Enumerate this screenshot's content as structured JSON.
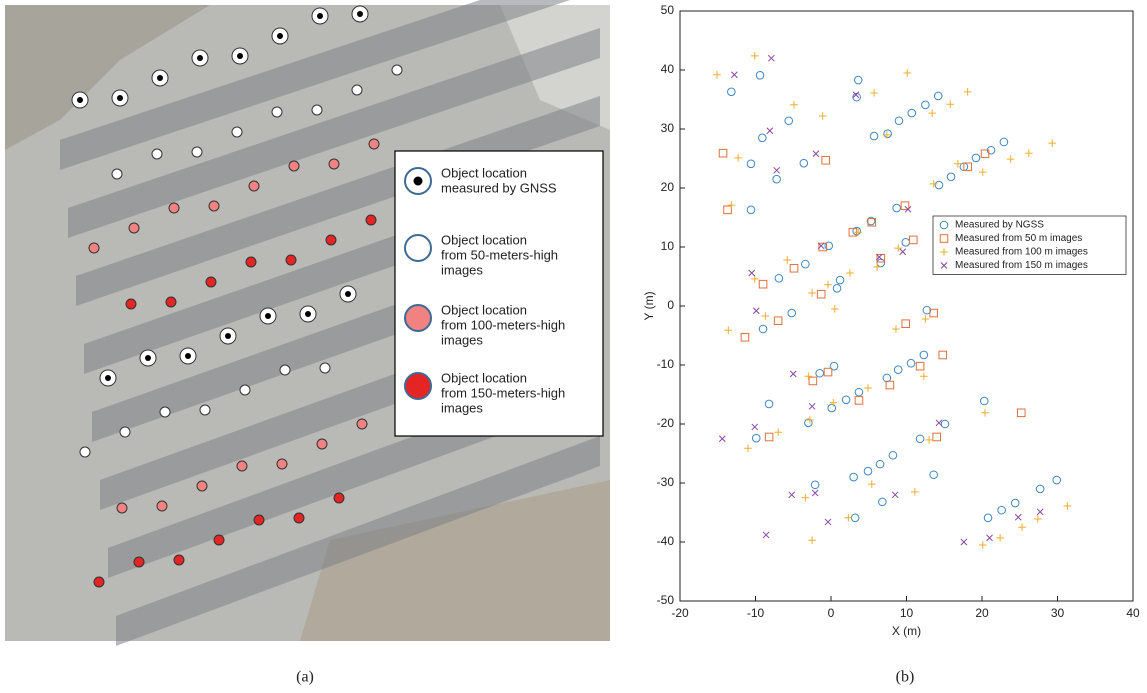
{
  "figure_a": {
    "legend": [
      {
        "lines": [
          "Object location",
          "measured by GNSS"
        ]
      },
      {
        "lines": [
          "Object location",
          "from 50-meters-high",
          "images"
        ]
      },
      {
        "lines": [
          "Object location",
          "from 100-meters-high",
          "images"
        ]
      },
      {
        "lines": [
          "Object location",
          "from 150-meters-high",
          "images"
        ]
      }
    ],
    "caption": "(a)"
  },
  "figure_b_caption": "(b)",
  "chart_data": {
    "type": "scatter",
    "xlabel": "X (m)",
    "ylabel": "Y (m)",
    "xlim": [
      -20,
      40
    ],
    "ylim": [
      -50,
      50
    ],
    "xticks": [
      -20,
      -10,
      0,
      10,
      20,
      30,
      40
    ],
    "yticks": [
      -50,
      -40,
      -30,
      -20,
      -10,
      0,
      10,
      20,
      30,
      40,
      50
    ],
    "legend": "upper right",
    "series": [
      {
        "name": "Measured by NGSS",
        "color": "#3d86c6",
        "marker": "circle",
        "x": [
          -13.2,
          -9.4,
          3.6,
          3.4,
          7.5,
          9.0,
          10.7,
          12.5,
          14.2,
          5.7,
          -5.6,
          -9.1,
          -10.6,
          -3.6,
          -7.2,
          14.3,
          15.9,
          19.2,
          21.2,
          22.9,
          17.6,
          -10.6,
          8.7,
          3.4,
          5.3,
          6.6,
          9.9,
          -0.3,
          -3.4,
          -6.9,
          0.8,
          1.2,
          -5.2,
          -9.0,
          12.7,
          0.4,
          -1.5,
          7.4,
          8.9,
          10.6,
          12.3,
          -8.2,
          -9.9,
          -3.0,
          0.1,
          2.0,
          3.7,
          11.8,
          15.1,
          20.3,
          -2.1,
          3.0,
          4.9,
          6.5,
          8.2,
          13.6,
          3.2,
          6.8,
          20.8,
          22.6,
          24.4,
          27.7,
          29.9
        ],
        "y": [
          36.3,
          39.1,
          38.3,
          35.4,
          29.2,
          31.4,
          32.7,
          34.1,
          35.6,
          28.8,
          31.4,
          28.5,
          24.1,
          24.2,
          21.5,
          20.5,
          21.9,
          25.1,
          26.4,
          27.8,
          23.6,
          16.3,
          16.6,
          12.7,
          14.4,
          7.3,
          10.8,
          10.2,
          7.1,
          4.7,
          3.0,
          4.4,
          -1.2,
          -3.9,
          -0.7,
          -10.2,
          -11.4,
          -12.2,
          -10.8,
          -9.7,
          -8.3,
          -16.6,
          -22.4,
          -19.8,
          -17.3,
          -15.9,
          -14.6,
          -22.5,
          -20.0,
          -16.1,
          -30.3,
          -29.0,
          -28.0,
          -26.8,
          -25.3,
          -28.6,
          -35.9,
          -33.2,
          -35.9,
          -34.6,
          -33.4,
          -31.0,
          -29.5
        ]
      },
      {
        "name": "Measured from 50 m images",
        "color": "#e0703c",
        "marker": "square",
        "x": [
          -14.3,
          -13.7,
          -9.0,
          -4.9,
          -1.3,
          -1.1,
          2.9,
          5.4,
          9.8,
          6.6,
          10.9,
          -7.0,
          -11.4,
          9.9,
          13.6,
          -2.4,
          -0.4,
          7.8,
          11.8,
          14.8,
          -8.2,
          3.7,
          14.0,
          25.2,
          -0.7,
          18.1,
          20.4
        ],
        "y": [
          25.9,
          16.3,
          3.7,
          6.4,
          2.0,
          10.0,
          12.5,
          14.2,
          17.0,
          8.1,
          11.2,
          -2.5,
          -5.3,
          -3.0,
          -1.2,
          -12.7,
          -11.2,
          -13.4,
          -10.2,
          -8.3,
          -22.2,
          -16.0,
          -22.2,
          -18.1,
          24.7,
          23.6,
          25.8
        ]
      },
      {
        "name": "Measured from 100 m images",
        "color": "#eeae2e",
        "marker": "plus",
        "x": [
          -15.1,
          -10.1,
          -12.3,
          -13.2,
          -4.9,
          -1.1,
          5.7,
          10.1,
          7.4,
          13.4,
          15.8,
          18.1,
          13.6,
          16.8,
          20.1,
          23.8,
          26.2,
          29.3,
          -10.1,
          -5.8,
          -2.5,
          -0.4,
          2.5,
          3.6,
          6.1,
          8.9,
          -13.6,
          -8.7,
          0.5,
          8.6,
          12.5,
          -3.0,
          0.3,
          4.9,
          12.3,
          -11.0,
          -7.0,
          -2.8,
          13.0,
          20.4,
          -3.4,
          -2.5,
          2.3,
          5.4,
          11.1,
          20.1,
          22.4,
          25.3,
          27.4,
          31.3
        ],
        "y": [
          39.2,
          42.4,
          25.1,
          17.1,
          34.1,
          32.2,
          36.1,
          39.5,
          29.0,
          32.7,
          34.2,
          36.3,
          20.7,
          24.1,
          22.7,
          24.9,
          25.9,
          27.6,
          4.6,
          7.8,
          2.2,
          3.6,
          5.6,
          12.5,
          6.6,
          9.8,
          -4.1,
          -1.7,
          -0.5,
          -3.9,
          -2.2,
          -11.9,
          -16.4,
          -13.9,
          -11.9,
          -24.1,
          -21.4,
          -19.3,
          -22.7,
          -18.1,
          -32.5,
          -39.7,
          -35.9,
          -30.2,
          -31.5,
          -40.5,
          -39.3,
          -37.5,
          -36.1,
          -33.9
        ]
      },
      {
        "name": "Measured from 150 m images",
        "color": "#8a44a8",
        "marker": "x",
        "x": [
          -12.8,
          -7.9,
          -8.1,
          3.3,
          -2.0,
          -7.2,
          10.2,
          -10.5,
          -1.3,
          6.4,
          9.5,
          -9.9,
          -5.0,
          -2.5,
          -10.1,
          -14.4,
          14.3,
          -5.2,
          -2.1,
          -0.4,
          8.5,
          -8.6,
          17.6,
          24.8,
          27.7,
          21.0
        ],
        "y": [
          39.2,
          42.0,
          29.7,
          35.8,
          25.8,
          23.0,
          16.4,
          5.6,
          10.2,
          8.3,
          9.2,
          -0.8,
          -11.5,
          -17.0,
          -20.5,
          -22.5,
          -19.8,
          -32.0,
          -31.7,
          -36.6,
          -32.0,
          -38.8,
          -40.0,
          -35.8,
          -34.9,
          -39.3
        ]
      }
    ]
  }
}
